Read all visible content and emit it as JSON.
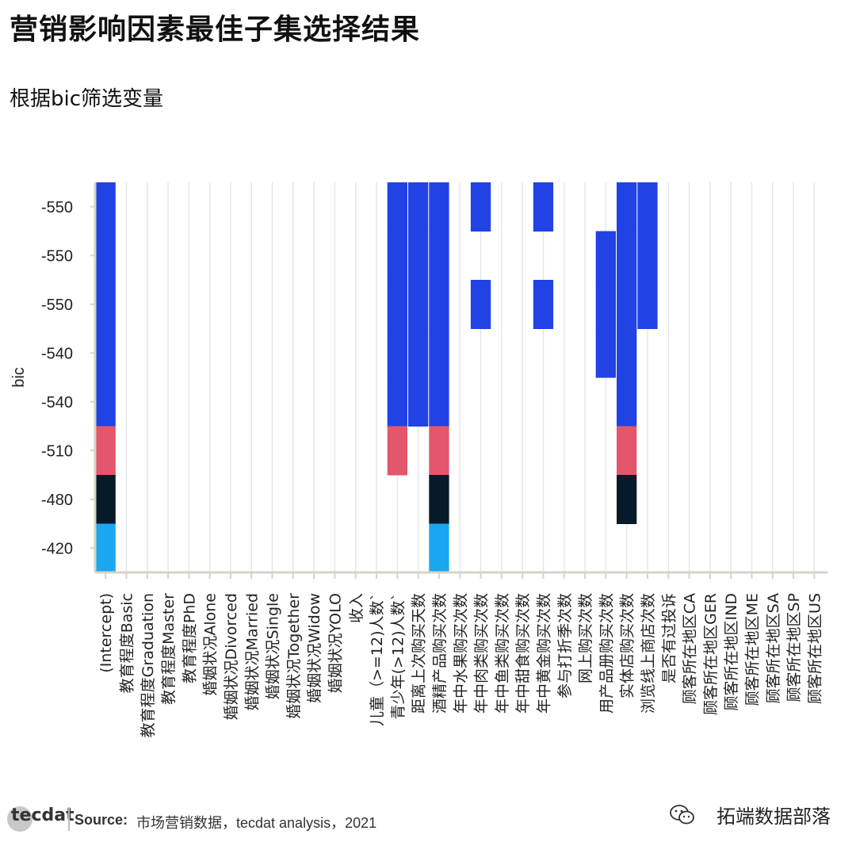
{
  "title": "营销影响因素最佳子集选择结果",
  "subtitle": "根据bic筛选变量",
  "footer": {
    "logo": "tecdat",
    "source_label": "Source:",
    "source_text": "市场营销数据，tecdat analysis，2021",
    "watermark": "拓端数据部落",
    "watermark_icon": "wechat-icon"
  },
  "chart_data": {
    "type": "heatmap",
    "ylabel": "bic",
    "y_tick_labels": [
      "-550",
      "-550",
      "-550",
      "-540",
      "-540",
      "-510",
      "-480",
      "-420"
    ],
    "rows": [
      -555,
      -550,
      -550,
      -545,
      -540,
      -510,
      -480,
      -420
    ],
    "x_labels": [
      "(Intercept)",
      "教育程度Basic",
      "教育程度Graduation",
      "教育程度Master",
      "教育程度PhD",
      "婚姻状况Alone",
      "婚姻状况Divorced",
      "婚姻状况Married",
      "婚姻状况Single",
      "婚姻状况Together",
      "婚姻状况Widow",
      "婚姻状况YOLO",
      "收入",
      "儿童（>=12)人数`",
      "青少年(>12)人数`",
      "距离上次购买天数",
      "酒精产品购买次数",
      "年中水果购买次数",
      "年中肉类购买次数",
      "年中鱼类购买次数",
      "年中甜食购买次数",
      "年中黄金购买次数",
      "参与打折季次数",
      "网上购买次数",
      "用产品册购买次数",
      "实体店购买次数",
      "浏览线上商店次数",
      "是否有过投诉",
      "顾客所在地区CA",
      "顾客所在地区GER",
      "顾客所在地区IND",
      "顾客所在地区ME",
      "顾客所在地区SA",
      "顾客所在地区SP",
      "顾客所在地区US"
    ],
    "included": {
      "0": [
        0,
        1,
        2,
        3,
        4,
        5,
        6,
        7
      ],
      "14": [
        0,
        1,
        2,
        3,
        4,
        5
      ],
      "15": [
        0,
        1,
        2,
        3,
        4
      ],
      "16": [
        0,
        1,
        2,
        3,
        4,
        5,
        6,
        7
      ],
      "18": [
        0,
        2
      ],
      "21": [
        0,
        2
      ],
      "24": [
        1,
        2,
        3
      ],
      "25": [
        0,
        1,
        2,
        3,
        4,
        5,
        6
      ],
      "26": [
        0,
        1,
        2
      ]
    },
    "color_levels": [
      {
        "rows": [
          0,
          1,
          2,
          3,
          4
        ],
        "color": "#2142e5"
      },
      {
        "rows": [
          5
        ],
        "color": "#e4566b"
      },
      {
        "rows": [
          6
        ],
        "color": "#071a2a"
      },
      {
        "rows": [
          7
        ],
        "color": "#1aa7ef"
      }
    ],
    "grid": true
  }
}
